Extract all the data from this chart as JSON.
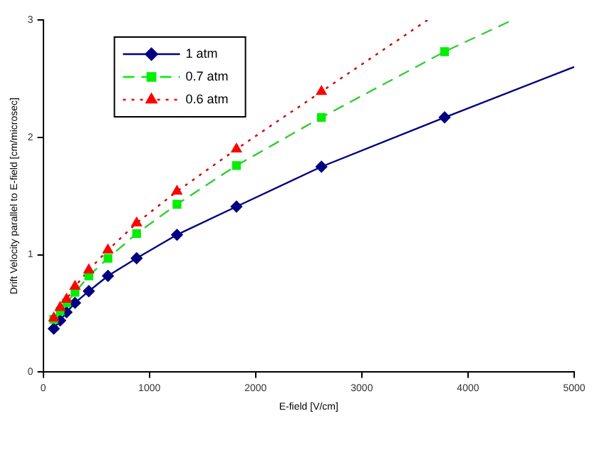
{
  "chart_data": {
    "type": "line",
    "xlabel": "E-field [V/cm]",
    "ylabel": "Drift Velocity parallel to E-field [cm/microsec]",
    "xlim": [
      0,
      5000
    ],
    "xticks": [
      0,
      1000,
      2000,
      3000,
      4000,
      5000
    ],
    "ylim": [
      0,
      3
    ],
    "yticks": [
      0,
      1,
      2,
      3
    ],
    "grid": false,
    "legend": "top left",
    "series": [
      {
        "name": "1 atm",
        "type": "scatter",
        "marker": "diamond",
        "line_style": "solid",
        "color": "#000080",
        "x": [
          100,
          160,
          220,
          300,
          430,
          610,
          880,
          1260,
          1820,
          2620,
          3780
        ],
        "values": [
          0.37,
          0.44,
          0.51,
          0.59,
          0.69,
          0.82,
          0.97,
          1.17,
          1.41,
          1.75,
          2.17
        ]
      },
      {
        "name": "0.7 atm",
        "type": "scatter",
        "marker": "square",
        "line_style": "dashed",
        "color": "#00ee00",
        "x": [
          100,
          160,
          220,
          300,
          430,
          610,
          880,
          1260,
          1820,
          2620,
          3780
        ],
        "values": [
          0.45,
          0.52,
          0.59,
          0.68,
          0.82,
          0.97,
          1.18,
          1.43,
          1.76,
          2.17,
          2.73
        ]
      },
      {
        "name": "0.6 atm",
        "type": "scatter",
        "marker": "triangle",
        "line_style": "dotted",
        "color": "#ff0000",
        "x": [
          100,
          160,
          220,
          300,
          430,
          610,
          880,
          1260,
          1820,
          2620
        ],
        "values": [
          0.46,
          0.55,
          0.62,
          0.73,
          0.87,
          1.04,
          1.27,
          1.54,
          1.9,
          2.39
        ]
      },
      {
        "type": "line",
        "marker": "none",
        "line_style": "solid",
        "color": "#000080",
        "x": [
          100,
          160,
          220,
          300,
          430,
          610,
          880,
          1260,
          1820,
          2620,
          3780,
          5000
        ],
        "values": [
          0.37,
          0.44,
          0.51,
          0.59,
          0.69,
          0.82,
          0.97,
          1.17,
          1.41,
          1.75,
          2.17,
          2.6
        ]
      },
      {
        "type": "line",
        "marker": "none",
        "line_style": "dashed",
        "color": "#33cc33",
        "x": [
          100,
          160,
          220,
          300,
          430,
          610,
          880,
          1260,
          1820,
          2620,
          3780,
          4420
        ],
        "values": [
          0.45,
          0.52,
          0.59,
          0.68,
          0.82,
          0.97,
          1.18,
          1.43,
          1.76,
          2.17,
          2.73,
          3.0
        ]
      },
      {
        "type": "line",
        "marker": "none",
        "line_style": "dotted",
        "color": "#cc0000",
        "x": [
          100,
          160,
          220,
          300,
          430,
          610,
          880,
          1260,
          1820,
          2620,
          3620
        ],
        "values": [
          0.46,
          0.55,
          0.62,
          0.73,
          0.87,
          1.04,
          1.27,
          1.54,
          1.9,
          2.39,
          3.0
        ]
      }
    ]
  }
}
